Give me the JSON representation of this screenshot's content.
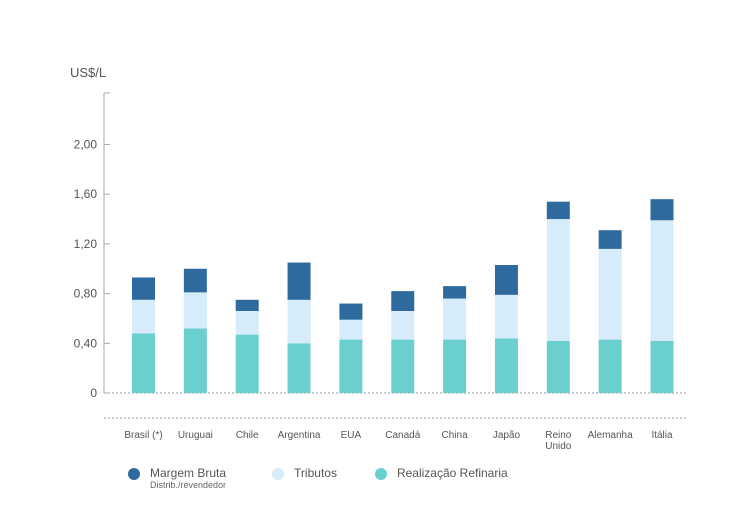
{
  "chart_data": {
    "type": "bar",
    "stacked": true,
    "ylabel": "US$/L",
    "ylim": [
      0,
      2.4
    ],
    "yticks": [
      {
        "value": 0,
        "label": "0"
      },
      {
        "value": 0.4,
        "label": "0,40"
      },
      {
        "value": 0.8,
        "label": "0,80"
      },
      {
        "value": 1.2,
        "label": "1,20"
      },
      {
        "value": 1.6,
        "label": "1,60"
      },
      {
        "value": 2.0,
        "label": "2,00"
      }
    ],
    "categories": [
      "Brasil (*)",
      "Uruguai",
      "Chile",
      "Argentina",
      "EUA",
      "Canadá",
      "China",
      "Japão",
      "Reino Unido",
      "Alemanha",
      "Itália"
    ],
    "category_lines": [
      [
        "Brasil (*)"
      ],
      [
        "Uruguai"
      ],
      [
        "Chile"
      ],
      [
        "Argentina"
      ],
      [
        "EUA"
      ],
      [
        "Canadá"
      ],
      [
        "China"
      ],
      [
        "Japão"
      ],
      [
        "Reino",
        "Unido"
      ],
      [
        "Alemanha"
      ],
      [
        "Itália"
      ]
    ],
    "series": [
      {
        "key": "refinaria",
        "color": "#6bcfcf",
        "values": [
          0.48,
          0.52,
          0.47,
          0.4,
          0.43,
          0.43,
          0.43,
          0.44,
          0.42,
          0.43,
          0.42
        ]
      },
      {
        "key": "tributos",
        "color": "#d6ecfb",
        "values": [
          0.27,
          0.29,
          0.19,
          0.35,
          0.16,
          0.23,
          0.33,
          0.35,
          0.98,
          0.73,
          0.97
        ]
      },
      {
        "key": "margem",
        "color": "#2e6a9e",
        "values": [
          0.18,
          0.19,
          0.09,
          0.3,
          0.13,
          0.16,
          0.1,
          0.24,
          0.14,
          0.15,
          0.17
        ]
      }
    ],
    "grid": false,
    "legend_position": "bottom-left"
  },
  "legend": {
    "items": [
      {
        "label": "Margem Bruta",
        "sublabel": "Distrib./revendedor",
        "color": "#2e6a9e"
      },
      {
        "label": "Tributos",
        "sublabel": "",
        "color": "#d6ecfb"
      },
      {
        "label": "Realização Refinaria",
        "sublabel": "",
        "color": "#6bcfcf"
      }
    ]
  }
}
